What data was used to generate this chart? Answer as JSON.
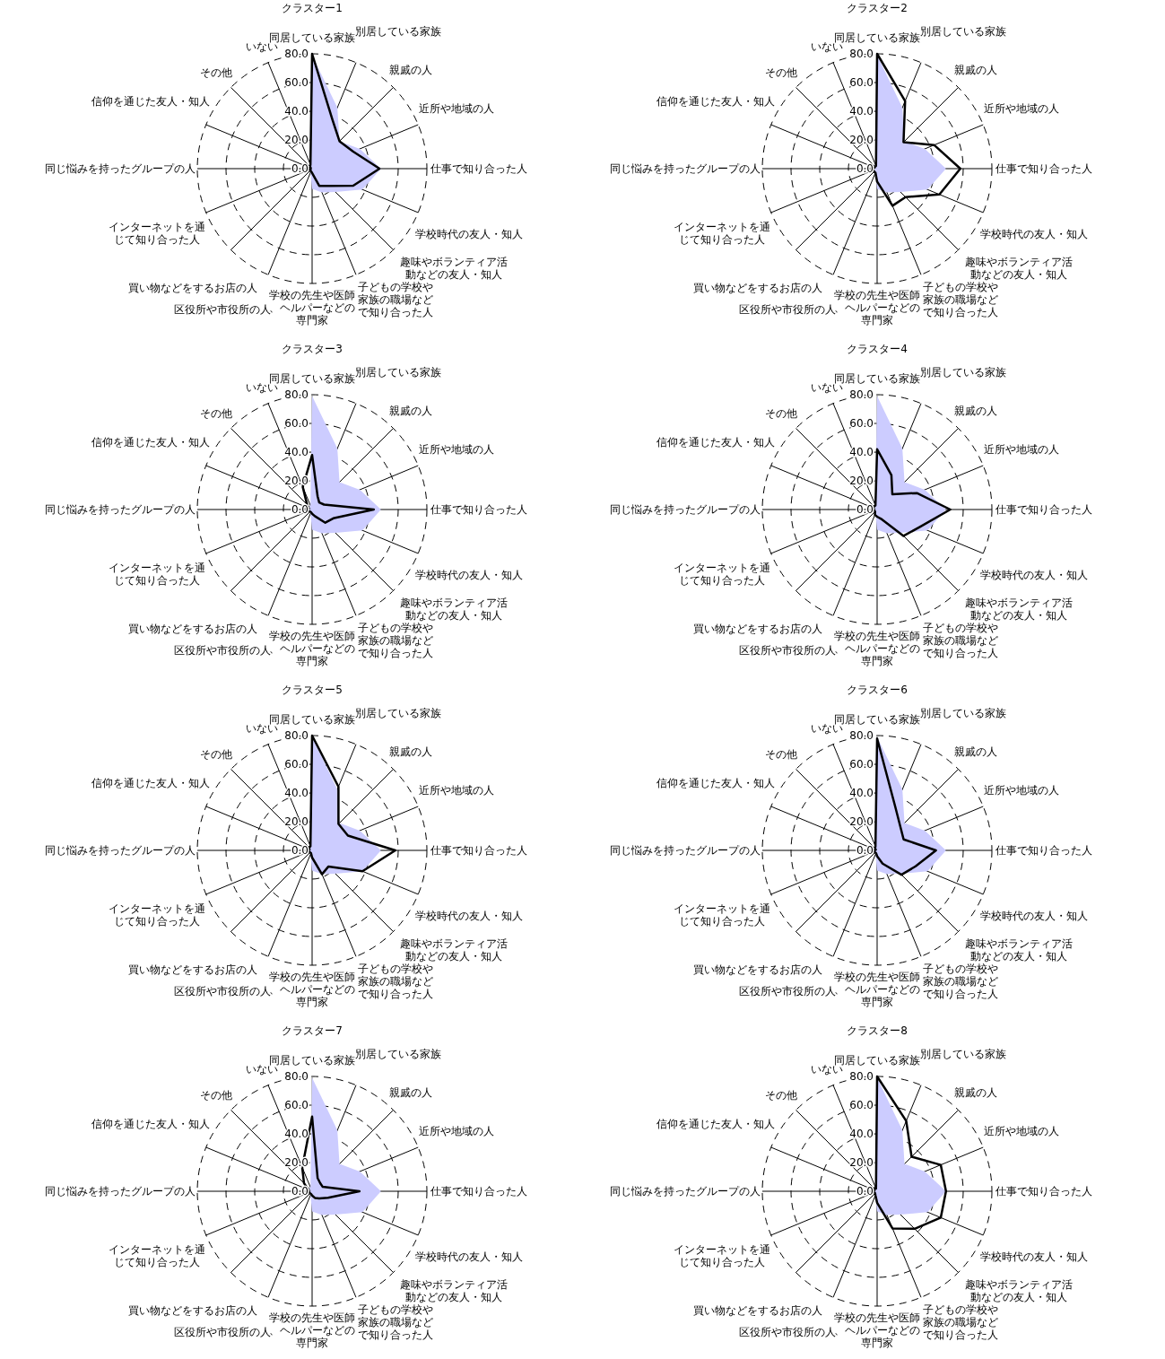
{
  "chart_data": [
    {
      "type": "radar",
      "title": "クラスター1",
      "categories": [
        "同居している家族",
        "別居している家族",
        "親戚の人",
        "近所や地域の人",
        "仕事で知り合った人",
        "学校時代の友人・知人",
        "趣味やボランティア活動などの友人・知人",
        "子どもの学校や家族の職場などで知り合った人",
        "学校の先生や医師、ヘルパーなどの専門家",
        "区役所や市役所の人",
        "買い物などをするお店の人",
        "インターネットを通じて知り合った人",
        "同じ悩みを持ったグループの人",
        "信仰を通じた友人・知人",
        "その他",
        "いない"
      ],
      "ylim": [
        0,
        80
      ],
      "yticks": [
        {
          "value": 0,
          "label": "0.0"
        },
        {
          "value": 20,
          "label": "20.0"
        },
        {
          "value": 40,
          "label": "40.0"
        },
        {
          "value": 60,
          "label": "60.0"
        },
        {
          "value": 80,
          "label": "80.0"
        }
      ],
      "grid": true,
      "series": [
        {
          "type": "area",
          "color": "#ccccff",
          "values": [
            79,
            46,
            27,
            36,
            48,
            38,
            23,
            18,
            14,
            3,
            2,
            2,
            2,
            1,
            3,
            3
          ]
        },
        {
          "color": "#000000",
          "values": [
            80,
            37,
            27,
            31,
            47,
            31,
            17,
            13,
            3,
            2,
            2,
            1,
            2,
            1,
            2,
            3
          ]
        }
      ]
    },
    {
      "type": "radar",
      "title": "クラスター2",
      "categories": [
        "同居している家族",
        "別居している家族",
        "親戚の人",
        "近所や地域の人",
        "仕事で知り合った人",
        "学校時代の友人・知人",
        "趣味やボランティア活動などの友人・知人",
        "子どもの学校や家族の職場などで知り合った人",
        "学校の先生や医師、ヘルパーなどの専門家",
        "区役所や市役所の人",
        "買い物などをするお店の人",
        "インターネットを通じて知り合った人",
        "同じ悩みを持ったグループの人",
        "信仰を通じた友人・知人",
        "その他",
        "いない"
      ],
      "ylim": [
        0,
        80
      ],
      "yticks": [
        {
          "value": 0,
          "label": "0.0"
        },
        {
          "value": 20,
          "label": "20.0"
        },
        {
          "value": 40,
          "label": "40.0"
        },
        {
          "value": 60,
          "label": "60.0"
        },
        {
          "value": 80,
          "label": "80.0"
        }
      ],
      "grid": true,
      "series": [
        {
          "type": "area",
          "color": "#ccccff",
          "values": [
            79,
            46,
            27,
            36,
            48,
            38,
            23,
            18,
            14,
            3,
            2,
            2,
            2,
            1,
            3,
            3
          ]
        },
        {
          "color": "#000000",
          "values": [
            80,
            51,
            26,
            43,
            58,
            47,
            28,
            28,
            9,
            3,
            3,
            4,
            5,
            2,
            2,
            2
          ]
        }
      ]
    },
    {
      "type": "radar",
      "title": "クラスター3",
      "categories": [
        "同居している家族",
        "別居している家族",
        "親戚の人",
        "近所や地域の人",
        "仕事で知り合った人",
        "学校時代の友人・知人",
        "趣味やボランティア活動などの友人・知人",
        "子どもの学校や家族の職場などで知り合った人",
        "学校の先生や医師、ヘルパーなどの専門家",
        "区役所や市役所の人",
        "買い物などをするお店の人",
        "インターネットを通じて知り合った人",
        "同じ悩みを持ったグループの人",
        "信仰を通じた友人・知人",
        "その他",
        "いない"
      ],
      "ylim": [
        0,
        80
      ],
      "yticks": [
        {
          "value": 0,
          "label": "0.0"
        },
        {
          "value": 20,
          "label": "20.0"
        },
        {
          "value": 40,
          "label": "40.0"
        },
        {
          "value": 60,
          "label": "60.0"
        },
        {
          "value": 80,
          "label": "80.0"
        }
      ],
      "grid": true,
      "series": [
        {
          "type": "area",
          "color": "#ccccff",
          "values": [
            79,
            46,
            27,
            36,
            48,
            38,
            23,
            18,
            14,
            3,
            2,
            2,
            2,
            1,
            3,
            3
          ]
        },
        {
          "color": "#000000",
          "values": [
            38,
            10,
            7,
            9,
            43,
            16,
            13,
            5,
            3,
            2,
            2,
            3,
            6,
            3,
            5,
            17
          ]
        }
      ]
    },
    {
      "type": "radar",
      "title": "クラスター4",
      "categories": [
        "同居している家族",
        "別居している家族",
        "親戚の人",
        "近所や地域の人",
        "仕事で知り合った人",
        "学校時代の友人・知人",
        "趣味やボランティア活動などの友人・知人",
        "子どもの学校や家族の職場などで知り合った人",
        "学校の先生や医師、ヘルパーなどの専門家",
        "区役所や市役所の人",
        "買い物などをするお店の人",
        "インターネットを通じて知り合った人",
        "同じ悩みを持ったグループの人",
        "信仰を通じた友人・知人",
        "その他",
        "いない"
      ],
      "ylim": [
        0,
        80
      ],
      "yticks": [
        {
          "value": 0,
          "label": "0.0"
        },
        {
          "value": 20,
          "label": "20.0"
        },
        {
          "value": 40,
          "label": "40.0"
        },
        {
          "value": 60,
          "label": "60.0"
        },
        {
          "value": 80,
          "label": "80.0"
        }
      ],
      "grid": true,
      "series": [
        {
          "type": "area",
          "color": "#ccccff",
          "values": [
            79,
            46,
            27,
            36,
            48,
            38,
            23,
            18,
            14,
            3,
            2,
            2,
            2,
            1,
            3,
            3
          ]
        },
        {
          "color": "#000000",
          "values": [
            42,
            26,
            15,
            30,
            51,
            32,
            26,
            7,
            5,
            4,
            2,
            2,
            3,
            3,
            3,
            3
          ]
        }
      ]
    },
    {
      "type": "radar",
      "title": "クラスター5",
      "categories": [
        "同居している家族",
        "別居している家族",
        "親戚の人",
        "近所や地域の人",
        "仕事で知り合った人",
        "学校時代の友人・知人",
        "趣味やボランティア活動などの友人・知人",
        "子どもの学校や家族の職場などで知り合った人",
        "学校の先生や医師、ヘルパーなどの専門家",
        "区役所や市役所の人",
        "買い物などをするお店の人",
        "インターネットを通じて知り合った人",
        "同じ悩みを持ったグループの人",
        "信仰を通じた友人・知人",
        "その他",
        "いない"
      ],
      "ylim": [
        0,
        80
      ],
      "yticks": [
        {
          "value": 0,
          "label": "0.0"
        },
        {
          "value": 20,
          "label": "20.0"
        },
        {
          "value": 40,
          "label": "40.0"
        },
        {
          "value": 60,
          "label": "60.0"
        },
        {
          "value": 80,
          "label": "80.0"
        }
      ],
      "grid": true,
      "series": [
        {
          "type": "area",
          "color": "#ccccff",
          "values": [
            79,
            46,
            27,
            36,
            48,
            38,
            23,
            18,
            14,
            3,
            2,
            2,
            2,
            1,
            3,
            3
          ]
        },
        {
          "color": "#000000",
          "values": [
            80,
            48,
            26,
            27,
            58,
            38,
            16,
            18,
            5,
            2,
            2,
            2,
            3,
            2,
            3,
            3
          ]
        }
      ]
    },
    {
      "type": "radar",
      "title": "クラスター6",
      "categories": [
        "同居している家族",
        "別居している家族",
        "親戚の人",
        "近所や地域の人",
        "仕事で知り合った人",
        "学校時代の友人・知人",
        "趣味やボランティア活動などの友人・知人",
        "子どもの学校や家族の職場などで知り合った人",
        "学校の先生や医師、ヘルパーなどの専門家",
        "区役所や市役所の人",
        "買い物などをするお店の人",
        "インターネットを通じて知り合った人",
        "同じ悩みを持ったグループの人",
        "信仰を通じた友人・知人",
        "その他",
        "いない"
      ],
      "ylim": [
        0,
        80
      ],
      "yticks": [
        {
          "value": 0,
          "label": "0.0"
        },
        {
          "value": 20,
          "label": "20.0"
        },
        {
          "value": 40,
          "label": "40.0"
        },
        {
          "value": 60,
          "label": "60.0"
        },
        {
          "value": 80,
          "label": "80.0"
        }
      ],
      "grid": true,
      "series": [
        {
          "type": "area",
          "color": "#ccccff",
          "values": [
            79,
            46,
            27,
            36,
            48,
            38,
            23,
            18,
            14,
            3,
            2,
            2,
            2,
            1,
            3,
            3
          ]
        },
        {
          "color": "#000000",
          "values": [
            78,
            33,
            23,
            20,
            41,
            29,
            24,
            10,
            4,
            2,
            2,
            2,
            2,
            1,
            2,
            3
          ]
        }
      ]
    },
    {
      "type": "radar",
      "title": "クラスター7",
      "categories": [
        "同居している家族",
        "別居している家族",
        "親戚の人",
        "近所や地域の人",
        "仕事で知り合った人",
        "学校時代の友人・知人",
        "趣味やボランティア活動などの友人・知人",
        "子どもの学校や家族の職場などで知り合った人",
        "学校の先生や医師、ヘルパーなどの専門家",
        "区役所や市役所の人",
        "買い物などをするお店の人",
        "インターネットを通じて知り合った人",
        "同じ悩みを持ったグループの人",
        "信仰を通じた友人・知人",
        "その他",
        "いない"
      ],
      "ylim": [
        0,
        80
      ],
      "yticks": [
        {
          "value": 0,
          "label": "0.0"
        },
        {
          "value": 20,
          "label": "20.0"
        },
        {
          "value": 40,
          "label": "40.0"
        },
        {
          "value": 60,
          "label": "60.0"
        },
        {
          "value": 80,
          "label": "80.0"
        }
      ],
      "grid": true,
      "series": [
        {
          "type": "area",
          "color": "#ccccff",
          "values": [
            79,
            46,
            27,
            36,
            48,
            38,
            23,
            18,
            14,
            3,
            2,
            2,
            2,
            1,
            3,
            3
          ]
        },
        {
          "color": "#000000",
          "values": [
            52,
            10,
            8,
            8,
            33,
            12,
            7,
            5,
            3,
            2,
            2,
            2,
            3,
            3,
            8,
            18
          ]
        }
      ]
    },
    {
      "type": "radar",
      "title": "クラスター8",
      "categories": [
        "同居している家族",
        "別居している家族",
        "親戚の人",
        "近所や地域の人",
        "仕事で知り合った人",
        "学校時代の友人・知人",
        "趣味やボランティア活動などの友人・知人",
        "子どもの学校や家族の職場などで知り合った人",
        "学校の先生や医師、ヘルパーなどの専門家",
        "区役所や市役所の人",
        "買い物などをするお店の人",
        "インターネットを通じて知り合った人",
        "同じ悩みを持ったグループの人",
        "信仰を通じた友人・知人",
        "その他",
        "いない"
      ],
      "ylim": [
        0,
        80
      ],
      "yticks": [
        {
          "value": 0,
          "label": "0.0"
        },
        {
          "value": 20,
          "label": "20.0"
        },
        {
          "value": 40,
          "label": "40.0"
        },
        {
          "value": 60,
          "label": "60.0"
        },
        {
          "value": 80,
          "label": "80.0"
        }
      ],
      "grid": true,
      "series": [
        {
          "type": "area",
          "color": "#ccccff",
          "values": [
            79,
            46,
            27,
            36,
            48,
            38,
            23,
            18,
            14,
            3,
            2,
            2,
            2,
            1,
            3,
            3
          ]
        },
        {
          "color": "#000000",
          "values": [
            80,
            53,
            34,
            48,
            48,
            48,
            37,
            28,
            8,
            3,
            2,
            2,
            3,
            2,
            3,
            2
          ]
        }
      ]
    }
  ]
}
